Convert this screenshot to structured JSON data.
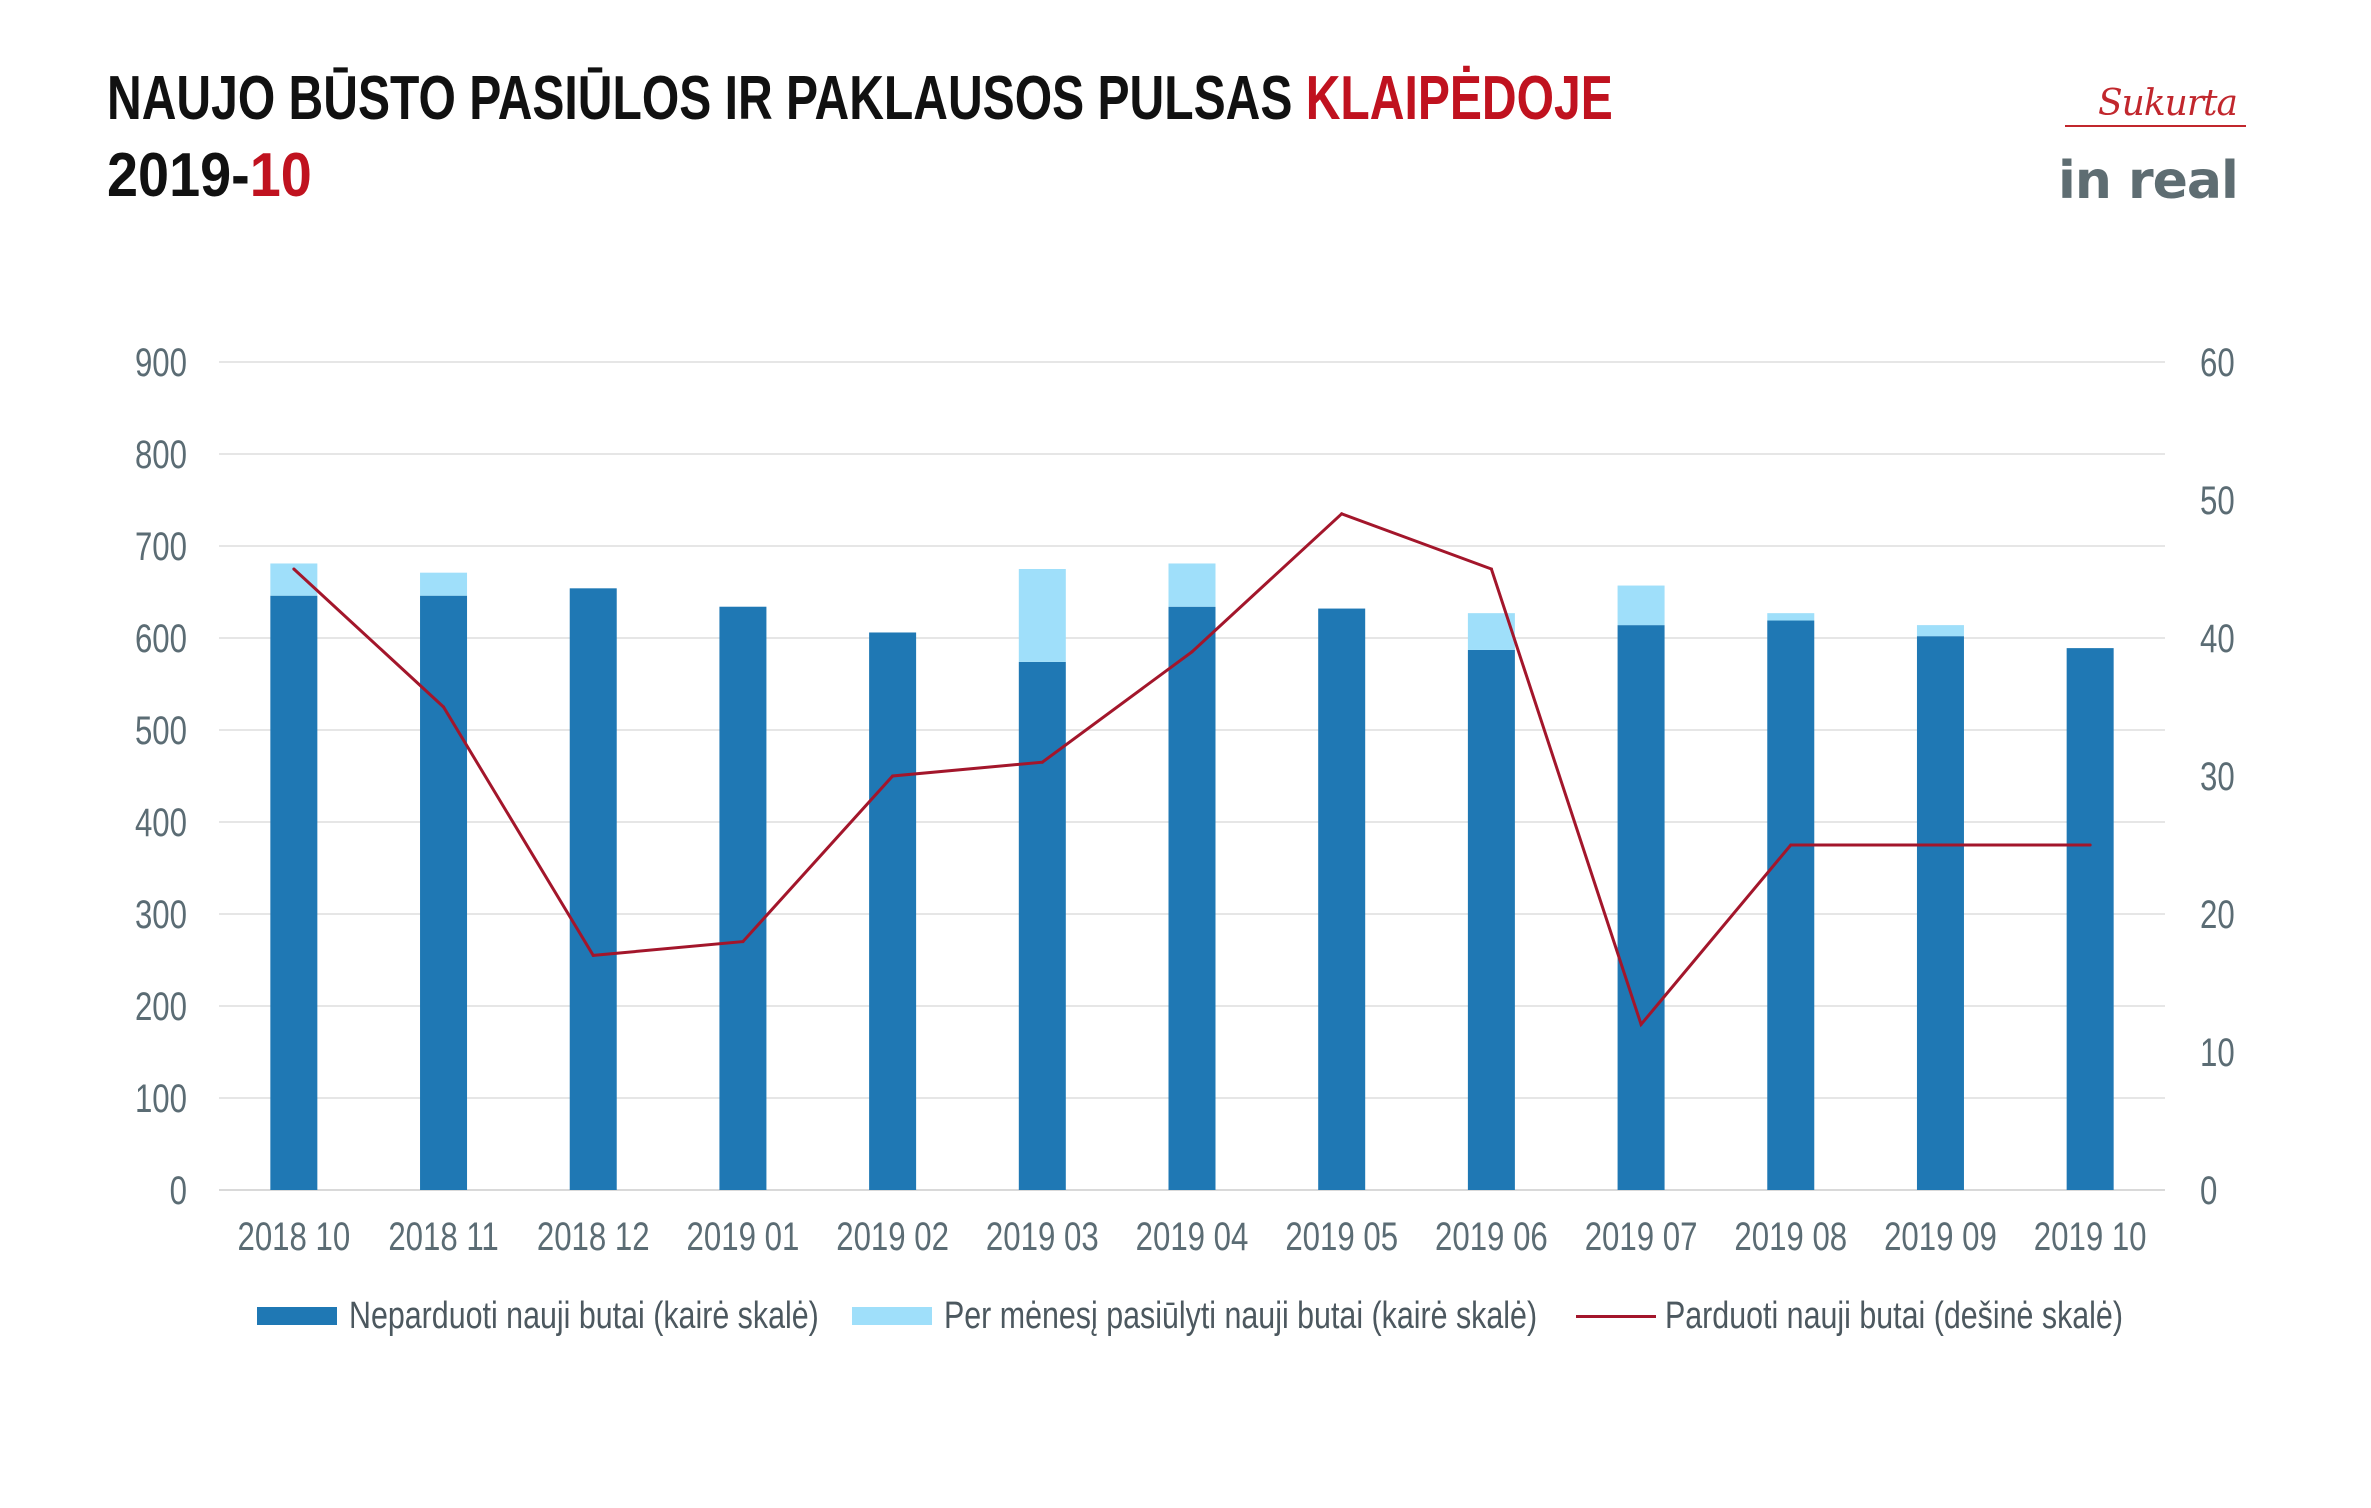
{
  "header": {
    "title_main": "NAUJO BŪSTO PASIŪLOS IR PAKLAUSOS PULSAS ",
    "title_accent": "KLAIPĖDOJE",
    "date_main": "2019-",
    "date_accent": "10"
  },
  "logo": {
    "script": "Sukurta",
    "brand": "in real"
  },
  "colors": {
    "title": "#111111",
    "accent": "#C0121F",
    "tick_text": "#5B6C74",
    "grid": "#E6E6E6"
  },
  "chart_data": {
    "type": "bar",
    "categories": [
      "2018 10",
      "2018 11",
      "2018 12",
      "2019 01",
      "2019 02",
      "2019 03",
      "2019 04",
      "2019 05",
      "2019 06",
      "2019 07",
      "2019 08",
      "2019 09",
      "2019 10"
    ],
    "series": [
      {
        "name": "Neparduoti nauji butai (kairė skalė)",
        "type": "bar",
        "axis": "left",
        "color": "#1F78B4",
        "values": [
          646,
          646,
          654,
          634,
          606,
          574,
          634,
          632,
          587,
          614,
          619,
          602,
          589
        ]
      },
      {
        "name": "Per mėnesį pasiūlyti nauji butai (kairė skalė)",
        "type": "bar-stacked",
        "axis": "left",
        "color": "#9FDFFA",
        "values": [
          35,
          25,
          0,
          0,
          0,
          101,
          47,
          0,
          40,
          43,
          8,
          12,
          0
        ]
      },
      {
        "name": "Parduoti nauji butai (dešinė skalė)",
        "type": "line",
        "axis": "right",
        "color": "#A3162B",
        "values": [
          45,
          35,
          17,
          18,
          30,
          31,
          39,
          49,
          45,
          12,
          25,
          25,
          25
        ]
      }
    ],
    "ylim_left": [
      0,
      900
    ],
    "yticks_left": [
      0,
      100,
      200,
      300,
      400,
      500,
      600,
      700,
      800,
      900
    ],
    "ylim_right": [
      0,
      60
    ],
    "yticks_right": [
      0,
      10,
      20,
      30,
      40,
      50,
      60
    ],
    "grid": true,
    "legend": "bottom"
  }
}
